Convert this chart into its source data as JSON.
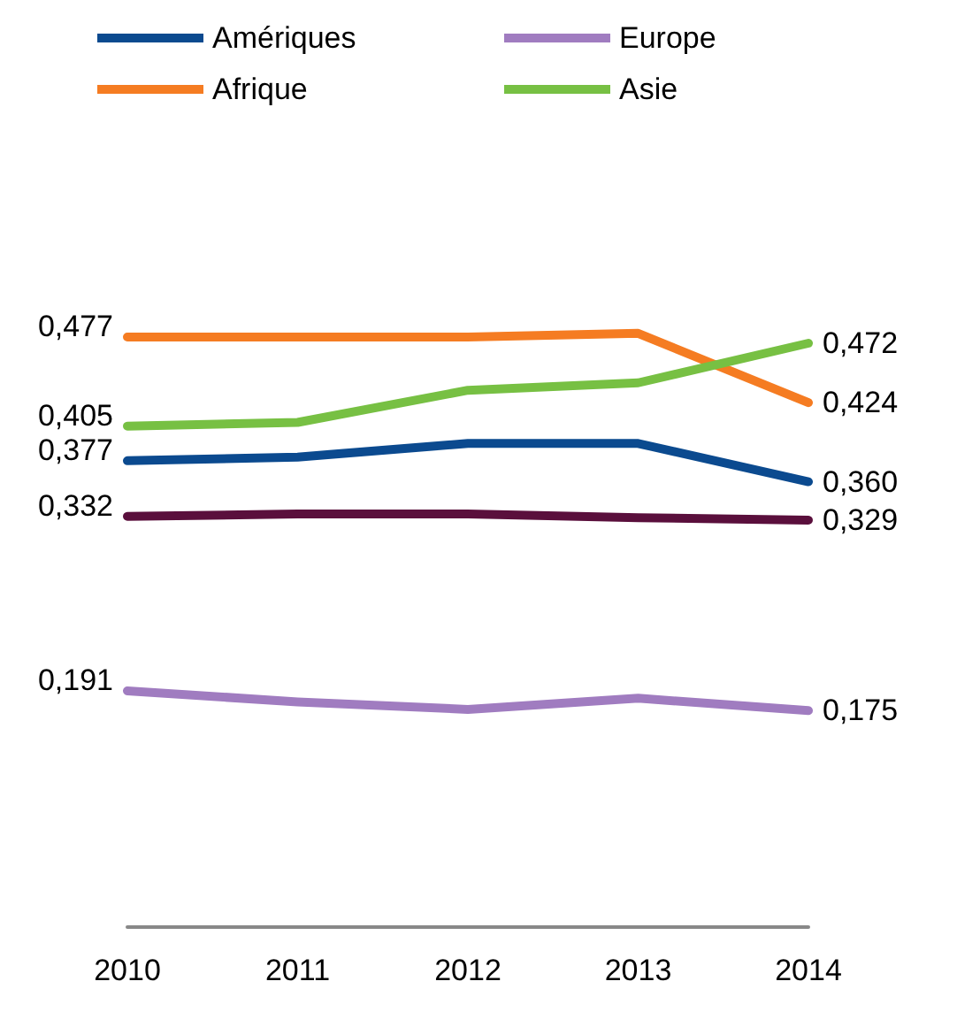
{
  "chart_data": {
    "type": "line",
    "categories": [
      "2010",
      "2011",
      "2012",
      "2013",
      "2014"
    ],
    "series": [
      {
        "name": "Amériques",
        "color": "#0b4a8f",
        "values": [
          0.377,
          0.38,
          0.391,
          0.391,
          0.36
        ],
        "value_labels": [
          "0,377",
          null,
          null,
          null,
          "0,360"
        ]
      },
      {
        "name": "Europe",
        "color": "#a07cc0",
        "values": [
          0.191,
          0.182,
          0.176,
          0.185,
          0.175
        ],
        "value_labels": [
          "0,191",
          null,
          null,
          null,
          "0,175"
        ]
      },
      {
        "name": "Afrique",
        "color": "#f57c22",
        "values": [
          0.477,
          0.477,
          0.477,
          0.48,
          0.424
        ],
        "value_labels": [
          "0,477",
          null,
          null,
          null,
          "0,424"
        ]
      },
      {
        "name": "Asie",
        "color": "#77c043",
        "values": [
          0.405,
          0.408,
          0.434,
          0.44,
          0.472
        ],
        "value_labels": [
          "0,405",
          null,
          null,
          null,
          "0,472"
        ]
      },
      {
        "color": "#5a0f3c",
        "values": [
          0.332,
          0.334,
          0.334,
          0.331,
          0.329
        ],
        "value_labels": [
          "0,332",
          null,
          null,
          null,
          "0,329"
        ]
      }
    ],
    "legend": "top left",
    "marker": "none",
    "line_style": "solid"
  }
}
